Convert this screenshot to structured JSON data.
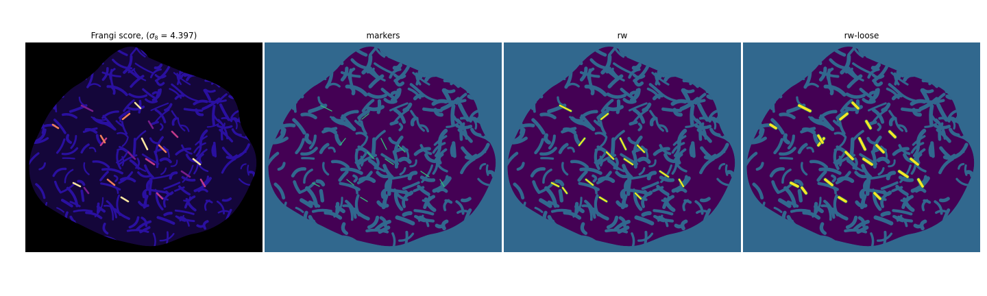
{
  "figure": {
    "panels": [
      {
        "title_prefix": "Frangi score, (",
        "title_symbol": "σ",
        "title_subscript": "8",
        "title_suffix": " = 4.397)",
        "kind": "vesselness",
        "colormap": "magma",
        "background_color": "#000000",
        "vessel_color": "#2a10a0",
        "hot_colors": [
          "#7a1d8c",
          "#c23a8a",
          "#f0805a",
          "#fbe7a2"
        ]
      },
      {
        "title": "markers",
        "kind": "labels",
        "background_color": "#31688e",
        "tissue_color": "#440154",
        "marker_color": "#35b779"
      },
      {
        "title": "rw",
        "kind": "labels",
        "background_color": "#31688e",
        "tissue_color": "#440154",
        "segment_color": "#fde725"
      },
      {
        "title": "rw-loose",
        "kind": "labels",
        "background_color": "#31688e",
        "tissue_color": "#440154",
        "segment_color": "#fde725"
      }
    ]
  }
}
